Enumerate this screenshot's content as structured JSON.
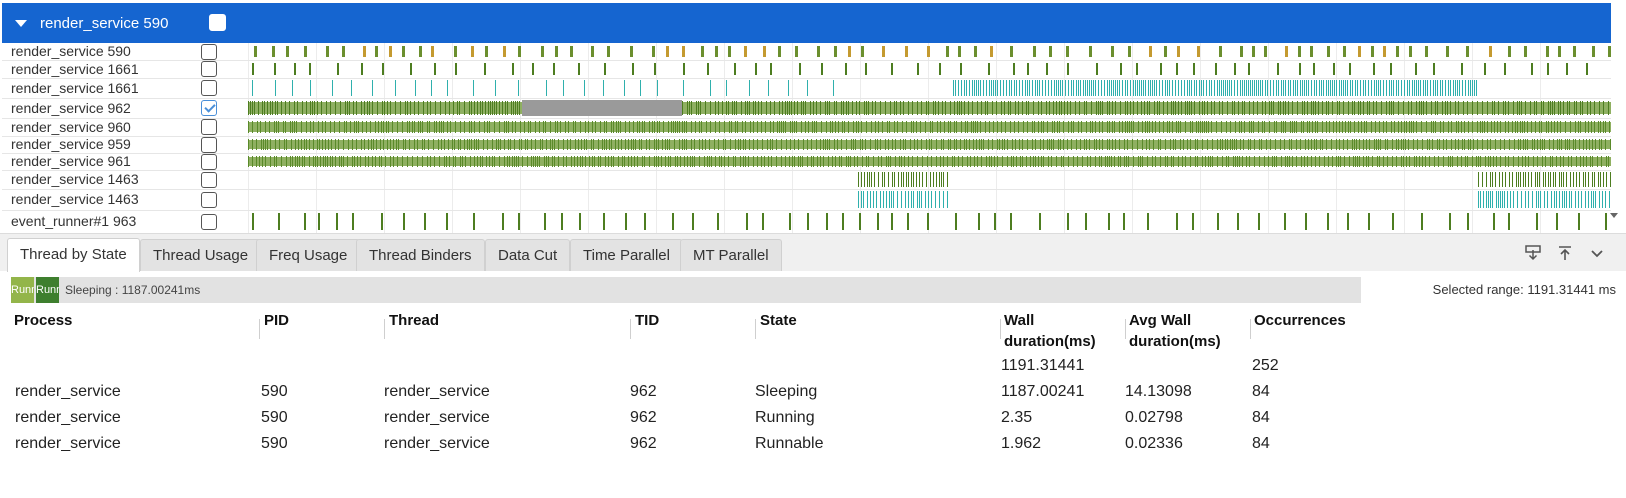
{
  "process_header": {
    "title": "render_service 590",
    "checked": false
  },
  "threads": [
    {
      "label": "render_service 590",
      "checked": false,
      "kind": "thick",
      "color": "#6b8f2e"
    },
    {
      "label": "render_service 1661",
      "checked": false,
      "kind": "sparse",
      "color": "#4d7d20"
    },
    {
      "label": "render_service 1661",
      "checked": false,
      "kind": "tall",
      "color": "#2fb0ad"
    },
    {
      "label": "render_service 962",
      "checked": true,
      "kind": "dense",
      "color": "#4d7d20"
    },
    {
      "label": "render_service 960",
      "checked": false,
      "kind": "dense",
      "color": "#5a8a2a"
    },
    {
      "label": "render_service 959",
      "checked": false,
      "kind": "dense",
      "color": "#5a8a2a"
    },
    {
      "label": "render_service 961",
      "checked": false,
      "kind": "dense",
      "color": "#5a8a2a"
    },
    {
      "label": "render_service 1463",
      "checked": false,
      "kind": "burst",
      "color": "#4d7d20"
    },
    {
      "label": "render_service 1463",
      "checked": false,
      "kind": "burstc",
      "color": "#2fb0ad"
    },
    {
      "label": "event_runner#1 963",
      "checked": false,
      "kind": "sparse",
      "color": "#4d7d20"
    }
  ],
  "tabs": [
    {
      "label": "Thread by State",
      "active": true
    },
    {
      "label": "Thread Usage",
      "active": false
    },
    {
      "label": "Freq Usage",
      "active": false
    },
    {
      "label": "Thread Binders",
      "active": false
    },
    {
      "label": "Data Cut",
      "active": false
    },
    {
      "label": "Time Parallel",
      "active": false
    },
    {
      "label": "MT Parallel",
      "active": false
    }
  ],
  "state_strip": {
    "badges": [
      {
        "label": "Runnable",
        "color": "#93b54a"
      },
      {
        "label": "Running",
        "color": "#3e7f2e"
      }
    ],
    "summary": "Sleeping : 1187.00241ms"
  },
  "selected_range": "Selected range: 1191.31441 ms",
  "table": {
    "headers": [
      "Process",
      "PID",
      "Thread",
      "TID",
      "State",
      "Wall duration(ms)",
      "Avg Wall duration(ms)",
      "Occurrences"
    ],
    "totals": {
      "wall": "1191.31441",
      "occurrences": "252"
    },
    "rows": [
      [
        "render_service",
        "590",
        "render_service",
        "962",
        "Sleeping",
        "1187.00241",
        "14.13098",
        "84"
      ],
      [
        "render_service",
        "590",
        "render_service",
        "962",
        "Running",
        "2.35",
        "0.02798",
        "84"
      ],
      [
        "render_service",
        "590",
        "render_service",
        "962",
        "Runnable",
        "1.962",
        "0.02336",
        "84"
      ]
    ]
  }
}
